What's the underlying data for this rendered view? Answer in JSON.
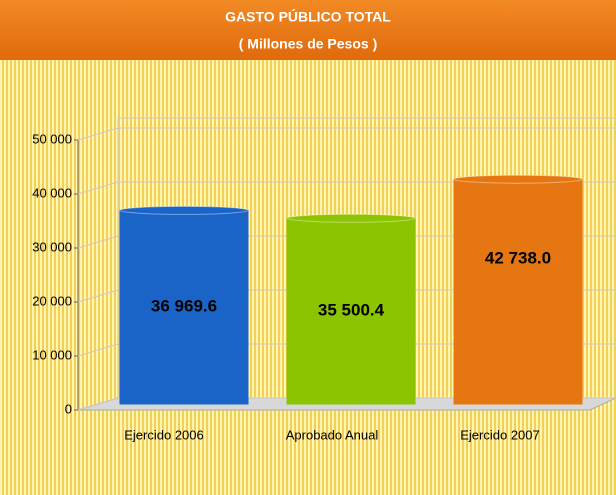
{
  "chart_data": {
    "type": "bar3d",
    "title": "GASTO PÚBLICO TOTAL",
    "subtitle": "( Millones de Pesos )",
    "categories": [
      "Ejercido 2006",
      "Aprobado Anual",
      "Ejercido 2007"
    ],
    "values": [
      36969.6,
      35500.4,
      42738.0
    ],
    "value_labels": [
      "36 969.6",
      "35 500.4",
      "42 738.0"
    ],
    "colors": [
      "#1a64c8",
      "#8cc400",
      "#e67612"
    ],
    "ylim": [
      0,
      50000
    ],
    "yticks": [
      0,
      {
        "value": 10000,
        "label": "10 000"
      },
      {
        "value": 20000,
        "label": "20 000"
      },
      {
        "value": 30000,
        "label": "30 000"
      },
      {
        "value": 40000,
        "label": "40 000"
      },
      {
        "value": 50000,
        "label": "50 000"
      }
    ],
    "grid": true
  }
}
